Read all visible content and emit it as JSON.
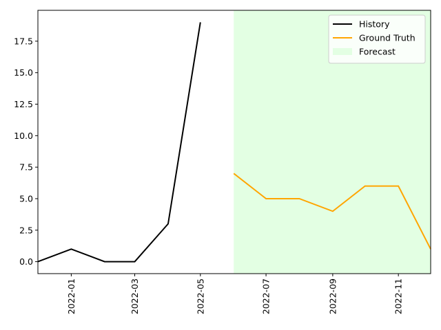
{
  "chart_data": {
    "type": "line",
    "series": [
      {
        "name": "History",
        "color": "#000000",
        "x": [
          "2021-12",
          "2022-01",
          "2022-02",
          "2022-03",
          "2022-04",
          "2022-05"
        ],
        "values": [
          0,
          1,
          0,
          0,
          3,
          19
        ]
      },
      {
        "name": "Ground Truth",
        "color": "#ffa500",
        "x": [
          "2022-06",
          "2022-07",
          "2022-08",
          "2022-09",
          "2022-10",
          "2022-11",
          "2022-12"
        ],
        "values": [
          7,
          5,
          5,
          4,
          6,
          6,
          1
        ]
      }
    ],
    "forecast": {
      "name": "Forecast",
      "color": "#e3ffe3",
      "start": "2022-06",
      "end": "2022-12"
    },
    "xlim": [
      "2021-12",
      "2022-12"
    ],
    "xticks": [
      "2022-01",
      "2022-03",
      "2022-05",
      "2022-07",
      "2022-09",
      "2022-11"
    ],
    "ylim": [
      -0.95,
      19.95
    ],
    "yticks": [
      {
        "value": 0,
        "label": "0.0"
      },
      2.5,
      {
        "value": 5,
        "label": "5.0"
      },
      7.5,
      {
        "value": 10,
        "label": "10.0"
      },
      12.5,
      {
        "value": 15,
        "label": "15.0"
      },
      17.5
    ],
    "legend": "upper right"
  }
}
